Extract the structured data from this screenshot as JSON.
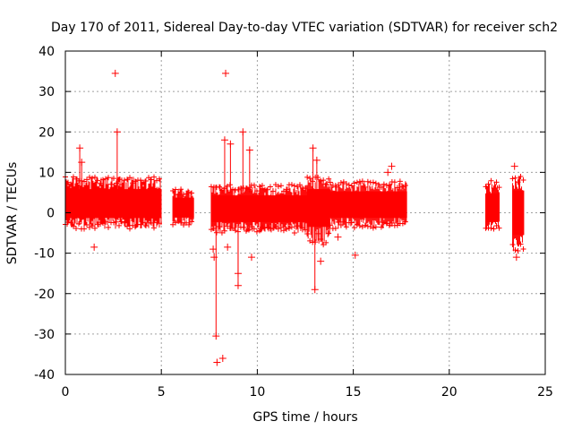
{
  "chart_data": {
    "type": "scatter",
    "title": "Day 170 of 2011, Sidereal Day-to-day VTEC variation (SDTVAR) for receiver sch2",
    "xlabel": "GPS time / hours",
    "ylabel": "SDTVAR / TECUs",
    "xlim": [
      0,
      25
    ],
    "ylim": [
      -40,
      40
    ],
    "xticks": [
      "0",
      "5",
      "10",
      "15",
      "20",
      "25"
    ],
    "yticks": [
      "40",
      "30",
      "20",
      "10",
      "0",
      "-10",
      "-20",
      "-30",
      "-40"
    ],
    "grid": true,
    "series_color": "#ff0000",
    "marker": "+",
    "segments": [
      {
        "x0": 0.0,
        "x1": 5.0,
        "lo": -4,
        "hi": 9,
        "center": 2
      },
      {
        "x0": 5.6,
        "x1": 6.7,
        "lo": -3,
        "hi": 6,
        "center": 1
      },
      {
        "x0": 7.6,
        "x1": 12.6,
        "lo": -5,
        "hi": 7,
        "center": 1
      },
      {
        "x0": 12.6,
        "x1": 13.8,
        "lo": -8,
        "hi": 9,
        "center": 2
      },
      {
        "x0": 13.8,
        "x1": 17.8,
        "lo": -4,
        "hi": 8,
        "center": 2
      },
      {
        "x0": 21.9,
        "x1": 22.6,
        "lo": -5,
        "hi": 8,
        "center": 1
      },
      {
        "x0": 23.3,
        "x1": 23.9,
        "lo": -10,
        "hi": 10,
        "center": 0
      }
    ],
    "outliers": [
      {
        "x": 0.75,
        "y": 16
      },
      {
        "x": 0.85,
        "y": 12.5
      },
      {
        "x": 1.5,
        "y": -8.5
      },
      {
        "x": 2.6,
        "y": 34.5
      },
      {
        "x": 2.7,
        "y": 20
      },
      {
        "x": 7.7,
        "y": -9
      },
      {
        "x": 7.75,
        "y": -11
      },
      {
        "x": 7.85,
        "y": -30.5
      },
      {
        "x": 7.9,
        "y": -37
      },
      {
        "x": 8.2,
        "y": -36
      },
      {
        "x": 8.35,
        "y": 34.5
      },
      {
        "x": 8.6,
        "y": 17
      },
      {
        "x": 8.3,
        "y": 18
      },
      {
        "x": 8.45,
        "y": -8.5
      },
      {
        "x": 9.0,
        "y": -18
      },
      {
        "x": 9.0,
        "y": -15
      },
      {
        "x": 9.25,
        "y": 20
      },
      {
        "x": 9.6,
        "y": 15.5
      },
      {
        "x": 9.7,
        "y": -11
      },
      {
        "x": 10.2,
        "y": -4
      },
      {
        "x": 12.9,
        "y": 16
      },
      {
        "x": 13.0,
        "y": -19
      },
      {
        "x": 13.1,
        "y": 13
      },
      {
        "x": 13.3,
        "y": -12
      },
      {
        "x": 14.2,
        "y": -6
      },
      {
        "x": 15.1,
        "y": -10.5
      },
      {
        "x": 16.8,
        "y": 10
      },
      {
        "x": 17.0,
        "y": 11.5
      },
      {
        "x": 23.4,
        "y": 11.5
      },
      {
        "x": 23.5,
        "y": -11
      }
    ]
  }
}
